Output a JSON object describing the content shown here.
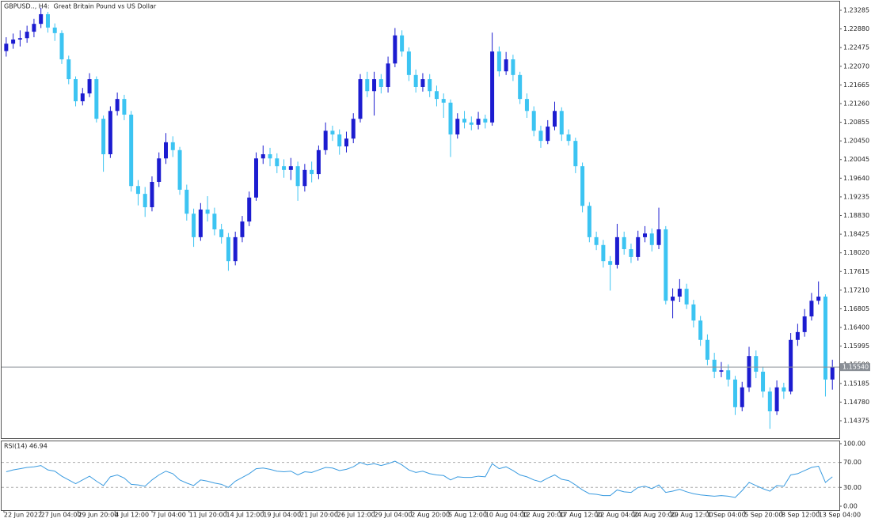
{
  "chart_data": [
    {
      "type": "candlestick",
      "title": "GBPUSD.., H4:  Great Britain Pound vs US Dollar",
      "up_color": "#1c1cd0",
      "down_color": "#3cc4f2",
      "x": [
        1,
        4,
        7,
        10,
        13,
        16,
        19,
        22,
        25,
        28,
        31,
        34,
        37,
        40,
        43,
        46,
        49,
        52,
        55,
        58,
        61,
        64,
        67,
        70,
        73,
        76,
        79,
        82,
        85,
        88,
        91,
        94,
        97,
        100,
        103,
        106,
        109,
        112,
        115,
        118,
        121,
        124,
        127,
        130,
        133,
        136,
        139,
        142,
        145,
        148,
        151,
        154,
        157,
        160,
        163,
        166,
        169,
        172,
        175,
        178,
        181,
        184,
        187,
        190,
        193,
        196,
        199,
        202,
        205,
        208,
        211,
        214,
        217,
        220,
        223,
        226,
        229,
        232,
        235,
        238,
        241,
        244,
        247,
        250,
        253,
        256,
        259,
        262,
        265,
        268,
        271,
        274,
        277,
        280,
        283,
        286,
        289,
        292,
        295,
        298,
        301,
        304,
        307,
        310,
        313,
        316,
        319,
        322,
        325,
        328,
        331,
        334,
        337,
        340,
        343,
        346,
        349,
        352,
        355,
        358
      ],
      "open": [
        1.224,
        1.2256,
        1.2265,
        1.2268,
        1.2282,
        1.2299,
        1.232,
        1.2291,
        1.2279,
        1.2222,
        1.2179,
        1.2131,
        1.2148,
        1.2179,
        1.2093,
        1.2016,
        1.211,
        1.2136,
        1.2102,
        1.1947,
        1.193,
        1.1901,
        1.1956,
        1.2007,
        1.2042,
        1.2025,
        1.1939,
        1.1887,
        1.1836,
        1.1896,
        1.1887,
        1.1853,
        1.1836,
        1.1784,
        1.1836,
        1.187,
        1.1922,
        1.2007,
        1.2016,
        1.2007,
        1.199,
        1.1982,
        1.199,
        1.1947,
        1.1982,
        1.1973,
        1.2025,
        1.2067,
        1.2059,
        1.2033,
        1.205,
        1.2093,
        1.2179,
        1.2153,
        1.2179,
        1.2162,
        1.2213,
        1.2274,
        1.2239,
        1.2188,
        1.2162,
        1.2179,
        1.2153,
        1.2136,
        1.2128,
        1.2059,
        1.2093,
        1.2085,
        1.208,
        1.2093,
        1.2085,
        1.2239,
        1.2196,
        1.2222,
        1.2188,
        1.2136,
        1.211,
        1.2067,
        1.2045,
        1.2076,
        1.211,
        1.2059,
        1.2045,
        1.199,
        1.1904,
        1.1836,
        1.1819,
        1.1784,
        1.1776,
        1.1836,
        1.181,
        1.1793,
        1.1836,
        1.1844,
        1.1819,
        1.1853,
        1.1698,
        1.1707,
        1.1724,
        1.169,
        1.1655,
        1.1613,
        1.157,
        1.1544,
        1.1547,
        1.1527,
        1.1467,
        1.151,
        1.1578,
        1.1544,
        1.1501,
        1.1458,
        1.151,
        1.1501,
        1.1613,
        1.163,
        1.1664,
        1.1698,
        1.1707,
        1.1527
      ],
      "high": [
        1.227,
        1.2278,
        1.2285,
        1.2295,
        1.231,
        1.2334,
        1.2325,
        1.23,
        1.2285,
        1.223,
        1.2185,
        1.216,
        1.2192,
        1.2185,
        1.21,
        1.212,
        1.215,
        1.2145,
        1.211,
        1.196,
        1.1945,
        1.1968,
        1.202,
        1.2062,
        1.2055,
        1.2032,
        1.195,
        1.1898,
        1.191,
        1.1925,
        1.19,
        1.1865,
        1.1845,
        1.1848,
        1.1882,
        1.1935,
        1.202,
        1.2035,
        1.203,
        1.2018,
        1.2005,
        1.2008,
        1.2,
        1.1995,
        1.2,
        1.2035,
        1.2085,
        1.2078,
        1.207,
        1.2065,
        1.2105,
        1.219,
        1.2195,
        1.2195,
        1.219,
        1.2228,
        1.229,
        1.2285,
        1.2248,
        1.22,
        1.2192,
        1.219,
        1.2165,
        1.2148,
        1.2135,
        1.2105,
        1.211,
        1.2098,
        1.2108,
        1.2102,
        1.228,
        1.225,
        1.2238,
        1.2232,
        1.2195,
        1.2148,
        1.212,
        1.2078,
        1.209,
        1.213,
        1.2118,
        1.207,
        1.2052,
        1.1998,
        1.1912,
        1.1848,
        1.183,
        1.1795,
        1.1865,
        1.1848,
        1.1822,
        1.185,
        1.186,
        1.1855,
        1.19,
        1.186,
        1.1725,
        1.1745,
        1.1735,
        1.17,
        1.1665,
        1.1625,
        1.1585,
        1.1565,
        1.156,
        1.1535,
        1.1522,
        1.1598,
        1.159,
        1.1555,
        1.151,
        1.1525,
        1.152,
        1.1628,
        1.1648,
        1.168,
        1.1715,
        1.174,
        1.1712,
        1.157
      ],
      "low": [
        1.2228,
        1.2245,
        1.225,
        1.2258,
        1.227,
        1.229,
        1.228,
        1.2262,
        1.2212,
        1.2168,
        1.212,
        1.2122,
        1.214,
        1.2085,
        1.1978,
        1.2008,
        1.21,
        1.209,
        1.1935,
        1.1905,
        1.188,
        1.1892,
        1.1945,
        1.1995,
        1.201,
        1.1928,
        1.1872,
        1.1815,
        1.1828,
        1.187,
        1.184,
        1.1822,
        1.1763,
        1.1775,
        1.1825,
        1.186,
        1.1915,
        1.1995,
        1.199,
        1.1975,
        1.1965,
        1.196,
        1.1915,
        1.1935,
        1.1955,
        1.1962,
        1.2015,
        1.2045,
        1.2015,
        1.202,
        1.204,
        1.2085,
        1.214,
        1.21,
        1.2148,
        1.215,
        1.2205,
        1.2228,
        1.2175,
        1.215,
        1.2152,
        1.214,
        1.212,
        1.2095,
        1.201,
        1.205,
        1.2072,
        1.2068,
        1.207,
        1.2072,
        1.2078,
        1.2185,
        1.2188,
        1.2175,
        1.2125,
        1.2095,
        1.2055,
        1.203,
        1.2038,
        1.2068,
        1.2045,
        1.2035,
        1.1975,
        1.189,
        1.1825,
        1.1808,
        1.177,
        1.172,
        1.1768,
        1.1798,
        1.178,
        1.1785,
        1.1825,
        1.1805,
        1.181,
        1.169,
        1.166,
        1.1695,
        1.168,
        1.164,
        1.16,
        1.1558,
        1.153,
        1.1532,
        1.1512,
        1.145,
        1.1458,
        1.15,
        1.153,
        1.1488,
        1.142,
        1.145,
        1.1485,
        1.1495,
        1.16,
        1.162,
        1.1655,
        1.169,
        1.149,
        1.1505
      ],
      "close": [
        1.2256,
        1.2265,
        1.2268,
        1.2282,
        1.2299,
        1.232,
        1.2291,
        1.2279,
        1.2222,
        1.2179,
        1.2131,
        1.2148,
        1.2179,
        1.2093,
        1.2016,
        1.211,
        1.2136,
        1.2102,
        1.1947,
        1.193,
        1.1901,
        1.1956,
        1.2007,
        1.2042,
        1.2025,
        1.1939,
        1.1887,
        1.1836,
        1.1896,
        1.1887,
        1.1853,
        1.1836,
        1.1784,
        1.1836,
        1.187,
        1.1922,
        1.2007,
        1.2016,
        1.2007,
        1.199,
        1.1982,
        1.199,
        1.1947,
        1.1982,
        1.1973,
        1.2025,
        1.2067,
        1.2059,
        1.2033,
        1.205,
        1.2093,
        1.2179,
        1.2153,
        1.2179,
        1.2162,
        1.2213,
        1.2274,
        1.2239,
        1.2188,
        1.2162,
        1.2179,
        1.2153,
        1.2136,
        1.2128,
        1.2059,
        1.2093,
        1.2085,
        1.208,
        1.2093,
        1.2085,
        1.2239,
        1.2196,
        1.2222,
        1.2188,
        1.2136,
        1.211,
        1.2067,
        1.2045,
        1.2076,
        1.211,
        1.2059,
        1.2045,
        1.199,
        1.1904,
        1.1836,
        1.1819,
        1.1784,
        1.1776,
        1.1836,
        1.181,
        1.1793,
        1.1836,
        1.1844,
        1.1819,
        1.1853,
        1.1698,
        1.1707,
        1.1724,
        1.169,
        1.1655,
        1.1613,
        1.157,
        1.1544,
        1.1547,
        1.1527,
        1.1467,
        1.151,
        1.1578,
        1.1544,
        1.1501,
        1.1458,
        1.151,
        1.1501,
        1.1613,
        1.163,
        1.1664,
        1.1698,
        1.1707,
        1.1527,
        1.1554
      ],
      "xlim": [
        -1,
        361
      ],
      "ylim": [
        1.1398,
        1.23474
      ],
      "yticks": [
        {
          "value": 1.23285,
          "label": "1.23285"
        },
        {
          "value": 1.2288,
          "label": "1.22880"
        },
        {
          "value": 1.22475,
          "label": "1.22475"
        },
        {
          "value": 1.2207,
          "label": "1.22070"
        },
        {
          "value": 1.21665,
          "label": "1.21665"
        },
        {
          "value": 1.2126,
          "label": "1.21260"
        },
        {
          "value": 1.20855,
          "label": "1.20855"
        },
        {
          "value": 1.2045,
          "label": "1.20450"
        },
        {
          "value": 1.20045,
          "label": "1.20045"
        },
        {
          "value": 1.1964,
          "label": "1.19640"
        },
        {
          "value": 1.19235,
          "label": "1.19235"
        },
        {
          "value": 1.1883,
          "label": "1.18830"
        },
        {
          "value": 1.18425,
          "label": "1.18425"
        },
        {
          "value": 1.1802,
          "label": "1.18020"
        },
        {
          "value": 1.17615,
          "label": "1.17615"
        },
        {
          "value": 1.1721,
          "label": "1.17210"
        },
        {
          "value": 1.16805,
          "label": "1.16805"
        },
        {
          "value": 1.164,
          "label": "1.16400"
        },
        {
          "value": 1.15995,
          "label": "1.15995"
        },
        {
          "value": 1.1559,
          "label": "1.15590"
        },
        {
          "value": 1.15185,
          "label": "1.15185"
        },
        {
          "value": 1.1478,
          "label": "1.14780"
        },
        {
          "value": 1.14375,
          "label": "1.14375"
        }
      ],
      "current_price": {
        "value": 1.1554,
        "label": "1.15540"
      }
    },
    {
      "type": "line",
      "title": "RSI(14) 46.94",
      "color": "#3a9be0",
      "x": [
        1,
        4,
        7,
        10,
        13,
        16,
        19,
        22,
        25,
        28,
        31,
        34,
        37,
        40,
        43,
        46,
        49,
        52,
        55,
        58,
        61,
        64,
        67,
        70,
        73,
        76,
        79,
        82,
        85,
        88,
        91,
        94,
        97,
        100,
        103,
        106,
        109,
        112,
        115,
        118,
        121,
        124,
        127,
        130,
        133,
        136,
        139,
        142,
        145,
        148,
        151,
        154,
        157,
        160,
        163,
        166,
        169,
        172,
        175,
        178,
        181,
        184,
        187,
        190,
        193,
        196,
        199,
        202,
        205,
        208,
        211,
        214,
        217,
        220,
        223,
        226,
        229,
        232,
        235,
        238,
        241,
        244,
        247,
        250,
        253,
        256,
        259,
        262,
        265,
        268,
        271,
        274,
        277,
        280,
        283,
        286,
        289,
        292,
        295,
        298,
        301,
        304,
        307,
        310,
        313,
        316,
        319,
        322,
        325,
        328,
        331,
        334,
        337,
        340,
        343,
        346,
        349,
        352,
        355,
        358
      ],
      "values": [
        55,
        58,
        60,
        62,
        63,
        65,
        58,
        56,
        48,
        42,
        36,
        42,
        48,
        40,
        33,
        47,
        50,
        45,
        35,
        34,
        32,
        42,
        50,
        56,
        52,
        42,
        37,
        33,
        42,
        40,
        37,
        35,
        30,
        40,
        46,
        52,
        60,
        61,
        59,
        56,
        55,
        56,
        50,
        55,
        54,
        58,
        62,
        61,
        57,
        59,
        63,
        70,
        66,
        68,
        65,
        68,
        72,
        66,
        58,
        54,
        56,
        52,
        50,
        49,
        42,
        47,
        46,
        46,
        48,
        47,
        68,
        60,
        63,
        57,
        50,
        47,
        42,
        39,
        45,
        50,
        43,
        41,
        34,
        26,
        20,
        19,
        17,
        17,
        26,
        23,
        22,
        30,
        32,
        28,
        34,
        22,
        24,
        27,
        23,
        20,
        18,
        17,
        16,
        17,
        16,
        14,
        25,
        38,
        33,
        28,
        24,
        33,
        32,
        50,
        52,
        57,
        62,
        64,
        38,
        46.94
      ],
      "xlim": [
        -1,
        361
      ],
      "ylim": [
        -6.3,
        105
      ],
      "yticks": [
        {
          "value": 100,
          "label": "100.00"
        },
        {
          "value": 70,
          "label": "70.00"
        },
        {
          "value": 30,
          "label": "30.00"
        },
        {
          "value": 0,
          "label": "0.00"
        }
      ],
      "levels": [
        70,
        30
      ],
      "xticks": [
        {
          "value": 0,
          "label": "22 Jun 2022"
        },
        {
          "value": 16,
          "label": "27 Jun 04:00"
        },
        {
          "value": 32,
          "label": "29 Jun 20:00"
        },
        {
          "value": 48,
          "label": "4 Jul 12:00"
        },
        {
          "value": 64,
          "label": "7 Jul 04:00"
        },
        {
          "value": 80,
          "label": "11 Jul 20:00"
        },
        {
          "value": 96,
          "label": "14 Jul 12:00"
        },
        {
          "value": 112,
          "label": "19 Jul 04:00"
        },
        {
          "value": 128,
          "label": "21 Jul 20:00"
        },
        {
          "value": 144,
          "label": "26 Jul 12:00"
        },
        {
          "value": 160,
          "label": "29 Jul 04:00"
        },
        {
          "value": 176,
          "label": "2 Aug 20:00"
        },
        {
          "value": 192,
          "label": "5 Aug 12:00"
        },
        {
          "value": 208,
          "label": "10 Aug 04:00"
        },
        {
          "value": 224,
          "label": "12 Aug 20:00"
        },
        {
          "value": 240,
          "label": "17 Aug 12:00"
        },
        {
          "value": 256,
          "label": "22 Aug 04:00"
        },
        {
          "value": 272,
          "label": "24 Aug 20:00"
        },
        {
          "value": 288,
          "label": "29 Aug 12:00"
        },
        {
          "value": 304,
          "label": "1 Sep 04:00"
        },
        {
          "value": 320,
          "label": "5 Sep 20:00"
        },
        {
          "value": 336,
          "label": "8 Sep 12:00"
        },
        {
          "value": 352,
          "label": "13 Sep 04:00"
        }
      ]
    }
  ]
}
